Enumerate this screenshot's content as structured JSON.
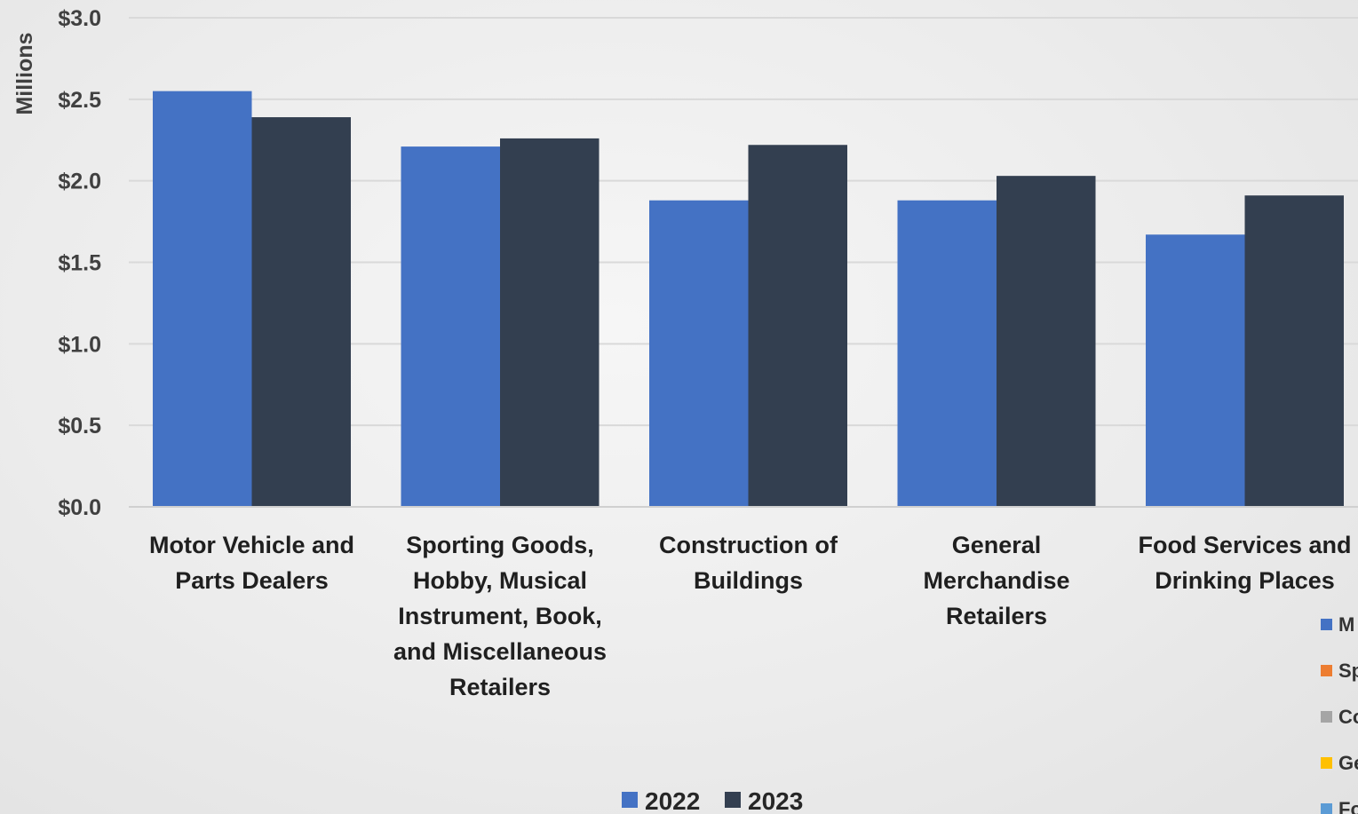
{
  "chart_data": {
    "type": "bar",
    "ylabel": "Millions",
    "ylim": [
      0,
      3.0
    ],
    "yticks": [
      "$0.0",
      "$0.5",
      "$1.0",
      "$1.5",
      "$2.0",
      "$2.5",
      "$3.0"
    ],
    "ytick_values": [
      0,
      0.5,
      1.0,
      1.5,
      2.0,
      2.5,
      3.0
    ],
    "grid": true,
    "legend_position": "bottom",
    "categories": [
      [
        "Motor Vehicle and",
        "Parts Dealers"
      ],
      [
        "Sporting Goods,",
        "Hobby, Musical",
        "Instrument, Book,",
        "and Miscellaneous",
        "Retailers"
      ],
      [
        "Construction of",
        "Buildings"
      ],
      [
        "General",
        "Merchandise",
        "Retailers"
      ],
      [
        "Food Services and",
        "Drinking Places"
      ]
    ],
    "series": [
      {
        "name": "2022",
        "color": "#4472c4",
        "values": [
          2.55,
          2.21,
          1.88,
          1.88,
          1.67
        ]
      },
      {
        "name": "2023",
        "color": "#333f50",
        "values": [
          2.39,
          2.26,
          2.22,
          2.03,
          1.91
        ]
      }
    ],
    "side_legend": [
      {
        "label": "M",
        "color": "#4472c4"
      },
      {
        "label": "Sp",
        "color": "#ed7d31"
      },
      {
        "label": "Co",
        "color": "#a5a5a5"
      },
      {
        "label": "Ge",
        "color": "#ffc000"
      },
      {
        "label": "Fo",
        "color": "#5b9bd5"
      }
    ]
  }
}
